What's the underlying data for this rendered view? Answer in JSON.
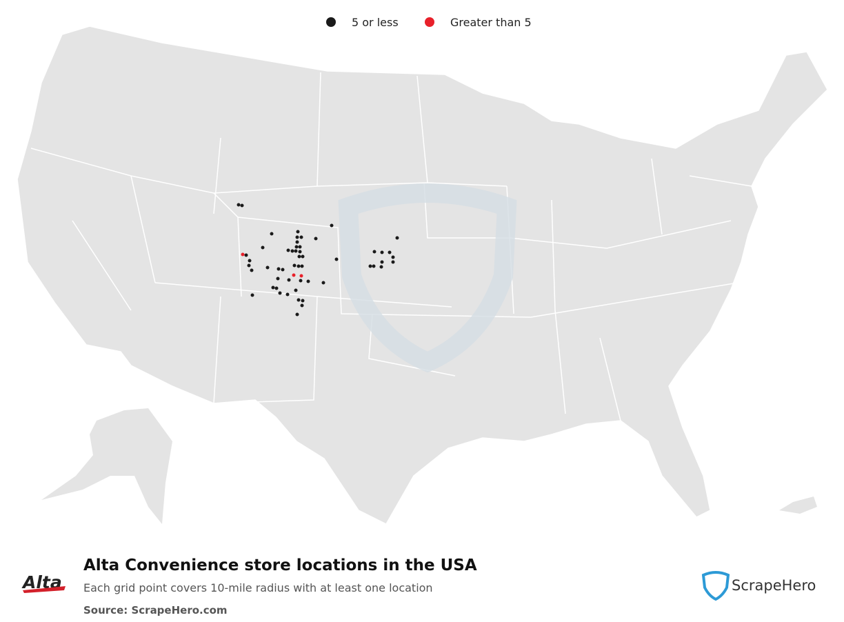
{
  "legend": {
    "items": [
      {
        "label": "5 or less",
        "color": "#1a1a1a"
      },
      {
        "label": "Greater than 5",
        "color": "#e8202a"
      }
    ]
  },
  "footer": {
    "logo": "Alta",
    "title": "Alta Convenience store locations in the USA",
    "subtitle": "Each grid point covers 10-mile radius with at least one location",
    "source": "Source: ScrapeHero.com",
    "brand": "ScrapeHero"
  }
}
